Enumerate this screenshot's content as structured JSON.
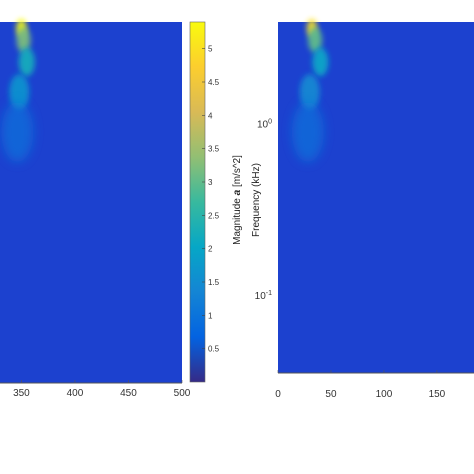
{
  "chart_data": [
    {
      "type": "heatmap",
      "title": "",
      "xlabel": "",
      "ylabel": "",
      "x_ticks": [
        "350",
        "400",
        "450",
        "500"
      ],
      "xlim": [
        330,
        500
      ],
      "colorscale": "parula",
      "dominant_level": 0.3,
      "hotspots": [
        {
          "x": 350,
          "level": 5.4,
          "descr": "peak at top"
        },
        {
          "x": 352,
          "level": 3.2
        },
        {
          "x": 355,
          "level": 2.2
        },
        {
          "x": 348,
          "level": 1.6
        }
      ]
    },
    {
      "type": "heatmap",
      "title": "",
      "xlabel": "",
      "ylabel": "Frequency (kHz)",
      "x_ticks": [
        "0",
        "50",
        "100",
        "150"
      ],
      "xlim": [
        0,
        185
      ],
      "y_scale": "log",
      "y_ticks": [
        {
          "base": "10",
          "exp": "0",
          "value": 1.0
        },
        {
          "base": "10",
          "exp": "-1",
          "value": 0.1
        }
      ],
      "colorscale": "parula",
      "dominant_level": 0.3,
      "hotspots": [
        {
          "x": 32,
          "level": 5.0,
          "descr": "peak at top"
        },
        {
          "x": 35,
          "level": 3.0
        },
        {
          "x": 40,
          "level": 2.0
        },
        {
          "x": 30,
          "level": 1.4
        }
      ]
    }
  ],
  "colorbar": {
    "label_symbol": "a",
    "label_unit": " [m/s^2]",
    "label_name": "Magnitude",
    "ticks": [
      "0.5",
      "1",
      "1.5",
      "2",
      "2.5",
      "3",
      "3.5",
      "4",
      "4.5",
      "5"
    ],
    "range": [
      0,
      5.4
    ],
    "colors": [
      "#352a87",
      "#0363e1",
      "#1485d4",
      "#06a7c6",
      "#38b99e",
      "#92bf73",
      "#d9ba56",
      "#fcce2e",
      "#f9fb0e"
    ]
  }
}
